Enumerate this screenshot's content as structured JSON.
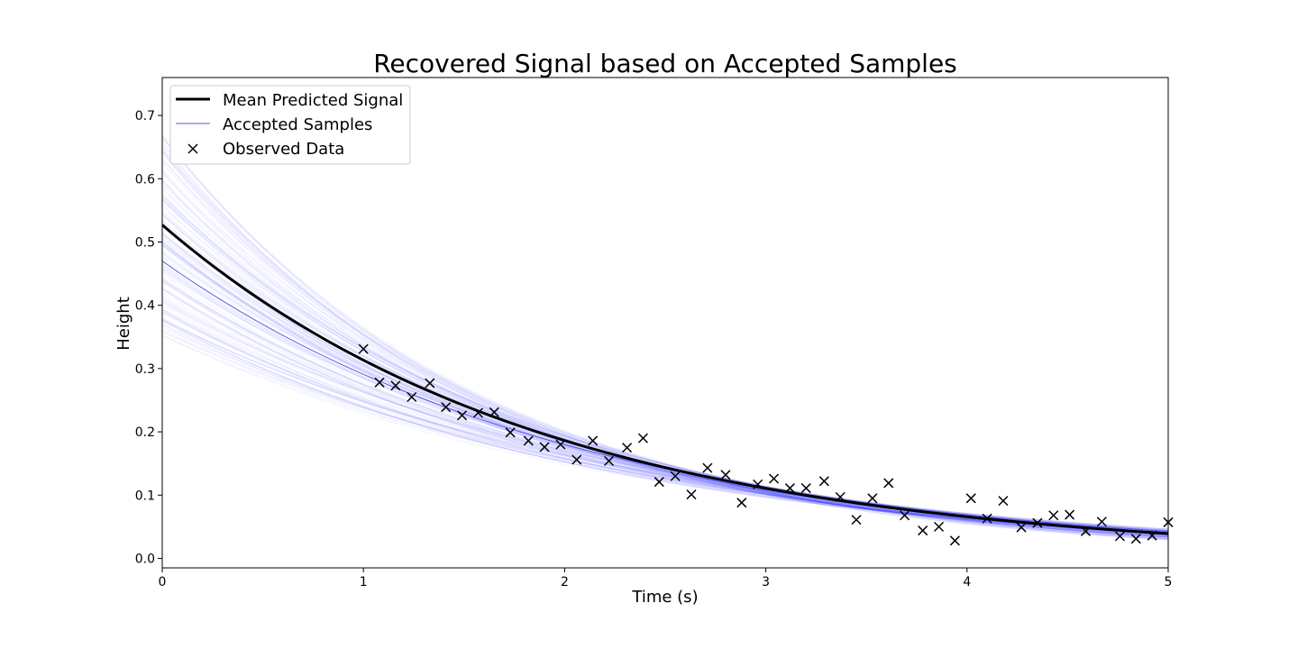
{
  "chart_data": {
    "type": "line",
    "title": "Recovered Signal based on Accepted Samples",
    "xlabel": "Time (s)",
    "ylabel": "Height",
    "xlim": [
      0,
      5
    ],
    "ylim": [
      -0.015,
      0.76
    ],
    "x_ticks": [
      0,
      1,
      2,
      3,
      4,
      5
    ],
    "y_ticks": [
      0.0,
      0.1,
      0.2,
      0.3,
      0.4,
      0.5,
      0.6,
      0.7
    ],
    "grid": false,
    "legend_position": "top-left",
    "colors": {
      "mean": "#000000",
      "samples": "#0000ff",
      "observed": "#000000"
    },
    "legend": [
      {
        "label": "Mean Predicted Signal",
        "style": "thick-line"
      },
      {
        "label": "Accepted Samples",
        "style": "thin-line"
      },
      {
        "label": "Observed Data",
        "style": "x-marker"
      }
    ],
    "mean_curve": {
      "name": "Mean Predicted Signal",
      "amplitude": 0.527,
      "decay": 0.52
    },
    "sample_curves": {
      "name": "Accepted Samples",
      "highlight": {
        "amplitude": 0.47,
        "decay": 0.48
      },
      "amplitude_range": [
        0.35,
        0.68
      ],
      "decay_range": [
        0.42,
        0.62
      ]
    },
    "observed": {
      "name": "Observed Data",
      "x": [
        1.0,
        1.08,
        1.16,
        1.24,
        1.33,
        1.41,
        1.49,
        1.57,
        1.65,
        1.73,
        1.82,
        1.9,
        1.98,
        2.06,
        2.14,
        2.22,
        2.31,
        2.39,
        2.47,
        2.55,
        2.63,
        2.71,
        2.8,
        2.88,
        2.96,
        3.04,
        3.12,
        3.2,
        3.29,
        3.37,
        3.45,
        3.53,
        3.61,
        3.69,
        3.78,
        3.86,
        3.94,
        4.02,
        4.1,
        4.18,
        4.27,
        4.35,
        4.43,
        4.51,
        4.59,
        4.67,
        4.76,
        4.84,
        4.92,
        5.0
      ],
      "y": [
        0.331,
        0.278,
        0.273,
        0.255,
        0.277,
        0.239,
        0.226,
        0.23,
        0.231,
        0.199,
        0.186,
        0.176,
        0.18,
        0.156,
        0.186,
        0.154,
        0.175,
        0.19,
        0.121,
        0.13,
        0.101,
        0.143,
        0.132,
        0.088,
        0.117,
        0.126,
        0.111,
        0.111,
        0.122,
        0.097,
        0.061,
        0.095,
        0.119,
        0.068,
        0.044,
        0.05,
        0.028,
        0.095,
        0.063,
        0.091,
        0.049,
        0.056,
        0.068,
        0.069,
        0.043,
        0.058,
        0.035,
        0.031,
        0.036,
        0.057
      ]
    }
  }
}
